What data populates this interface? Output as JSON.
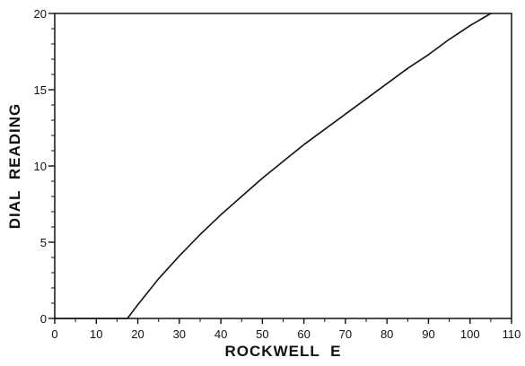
{
  "chart_data": {
    "type": "line",
    "title": "",
    "xlabel": "ROCKWELL E",
    "ylabel": "DIAL READING",
    "xlim": [
      0,
      110
    ],
    "ylim": [
      0,
      20
    ],
    "x_ticks": [
      0,
      10,
      20,
      30,
      40,
      50,
      60,
      70,
      80,
      90,
      100,
      110
    ],
    "y_ticks": [
      0,
      5,
      10,
      15,
      20
    ],
    "x_minor_step": 5,
    "y_minor_step": 1,
    "grid": false,
    "legend": "none",
    "colors": {
      "line": "#111111",
      "axis": "#111111"
    },
    "series": [
      {
        "x": [
          0,
          17.5,
          20,
          25,
          30,
          35,
          40,
          45,
          50,
          55,
          60,
          65,
          70,
          75,
          80,
          85,
          90,
          95,
          100,
          105
        ],
        "y": [
          0,
          0,
          0.9,
          2.6,
          4.1,
          5.5,
          6.8,
          8.0,
          9.2,
          10.3,
          11.4,
          12.4,
          13.4,
          14.4,
          15.4,
          16.4,
          17.3,
          18.3,
          19.2,
          20.0
        ]
      }
    ]
  }
}
